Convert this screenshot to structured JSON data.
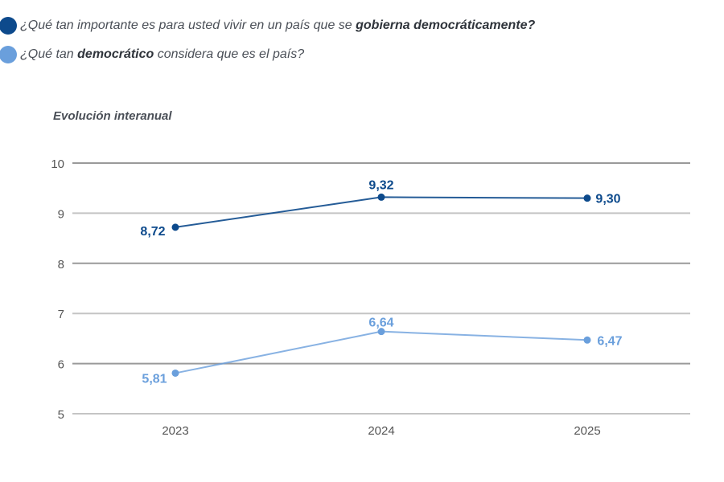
{
  "legend": [
    {
      "segments": [
        "¿Qué tan importante es para usted vivir en un país que se ",
        "gobierna democráticamente",
        "?"
      ],
      "color": "#0d4a8c"
    },
    {
      "segments": [
        "¿Qué tan ",
        "democrático",
        " considera que es el país?"
      ],
      "color": "#6a9fdc"
    }
  ],
  "chart_data": {
    "type": "line",
    "title": "",
    "subtitle": "Evolución interanual",
    "x": [
      "2023",
      "2024",
      "2025"
    ],
    "ylim": [
      5,
      10
    ],
    "yticks": [
      "5",
      "6",
      "7",
      "8",
      "9",
      "10"
    ],
    "grid": true,
    "legend_position": "top-left",
    "series": [
      {
        "name": "¿Qué tan importante es para usted vivir en un país que se gobierna democráticamente?",
        "values": [
          8.72,
          9.32,
          9.3
        ],
        "labels": [
          "8,72",
          "9,32",
          "9,30"
        ],
        "color": "#0d4a8c"
      },
      {
        "name": "¿Qué tan democrático considera que es el país?",
        "values": [
          5.81,
          6.64,
          6.47
        ],
        "labels": [
          "5,81",
          "6,64",
          "6,47"
        ],
        "color": "#6a9fdc"
      }
    ]
  }
}
